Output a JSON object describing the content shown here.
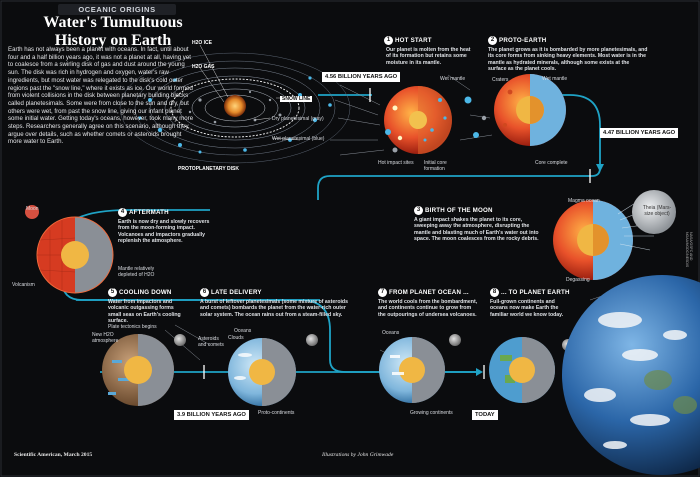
{
  "header": {
    "eyebrow": "OCEANIC ORIGINS",
    "title": "Water's Tumultuous History on Earth",
    "intro": "Earth has not always been a planet with oceans. In fact, until about four and a half billion years ago, it was not a planet at all, having yet to coalesce from a swirling disk of gas and dust around the young sun. The disk was rich in hydrogen and oxygen, water's raw ingredients, but most water was relegated to the disk's cold outer regions past the \"snow line,\" where it exists as ice. Our world formed from violent collisions in the disk between planetary building blocks called planetesimals. Some were from close to the sun and dry, but others were wet, from past the snow line, giving our infant planet some initial water. Getting today's oceans, however, took many more steps. Researchers generally agree on this scenario, although they argue over details, such as whether comets or asteroids brought more water to Earth."
  },
  "disk": {
    "h2o_ice": "H2O ICE",
    "h2o_gas": "H2O GAS",
    "snow_line": "SNOW LINE",
    "dry_planetesimal": "Dry planetesimal (gray)",
    "wet_planetesimal": "Wet planetesimal (blue)",
    "disk_label": "PROTOPLANETARY DISK"
  },
  "steps": [
    {
      "n": "1",
      "title": "HOT START",
      "desc": "Our planet is molten from the heat of its formation but retains some moisture in its mantle."
    },
    {
      "n": "2",
      "title": "PROTO-EARTH",
      "desc": "The planet grows as it is bombarded by more planetesimals, and its core forms from sinking heavy elements. Most water is in the mantle as hydrated minerals, although some exists at the surface as the planet cools."
    },
    {
      "n": "3",
      "title": "BIRTH OF THE MOON",
      "desc": "A giant impact shakes the planet to its core, sweeping away the atmosphere, disrupting the mantle and blasting much of Earth's water out into space. The moon coalesces from the rocky debris."
    },
    {
      "n": "4",
      "title": "AFTERMATH",
      "desc": "Earth is now dry and slowly recovers from the moon-forming impact. Volcanoes and impactors gradually replenish the atmosphere."
    },
    {
      "n": "5",
      "title": "COOLING DOWN",
      "desc": "Water from impactors and volcanic outgassing forms small seas on Earth's cooling surface."
    },
    {
      "n": "6",
      "title": "LATE DELIVERY",
      "desc": "A burst of leftover planetesimals (some mixture of asteroids and comets) bombards the planet from the water-rich outer solar system. The ocean rains out from a steam-filled sky."
    },
    {
      "n": "7",
      "title": "FROM PLANET OCEAN ...",
      "desc": "The world cools from the bombardment, and continents continue to grow from the outpourings of undersea volcanoes."
    },
    {
      "n": "8",
      "title": "... TO PLANET EARTH",
      "desc": "Full-grown continents and oceans now make Earth the familiar world we know today."
    }
  ],
  "labels": {
    "wet_mantle_1": "Wet mantle",
    "hot_impact": "Hot impact sites",
    "initial_core": "Initial core formation",
    "craters": "Craters",
    "wet_mantle_2": "Wet mantle",
    "core_complete": "Core complete",
    "magma_ocean": "Magma ocean",
    "theia": "Theia (Mars-size object)",
    "degassing": "Degassing",
    "moon": "Moon",
    "mantle_depleted": "Mantle relatively depleted of H2O",
    "volcanism": "Volcanism",
    "plate_tectonics": "Plate tectonics begins",
    "new_atmosphere": "New H2O atmosphere",
    "asteroids_comets": "Asteroids and comets",
    "clouds": "Clouds",
    "oceans_6": "Oceans",
    "proto_continents": "Proto-continents",
    "oceans_7": "Oceans",
    "growing_continents": "Growing continents"
  },
  "times": {
    "t1": "4.56 BILLION YEARS AGO",
    "t2": "4.47 BILLION YEARS AGO",
    "t3": "3.9 BILLION YEARS AGO",
    "t4": "TODAY"
  },
  "footer": {
    "source": "Scientific American, March 2015",
    "credit": "Illustrations by John Grimwade",
    "side": "NASA/GSFC AND NOAA/NGDC/NESDIS"
  },
  "colors": {
    "timeline": "#1fa3c6",
    "magma": "#e8512a",
    "water": "#3fa2d9",
    "background": "#0b0c0e"
  }
}
